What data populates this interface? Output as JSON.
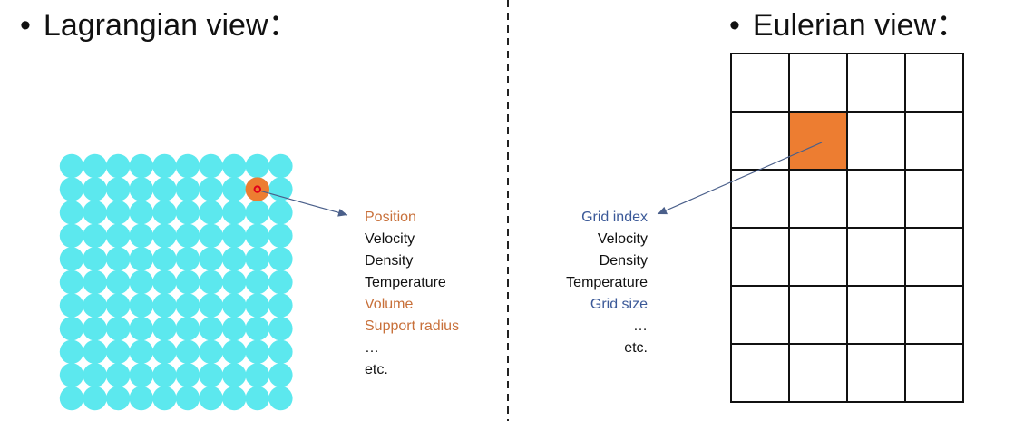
{
  "left": {
    "bullet": "•",
    "title": "Lagrangian view",
    "attributes": [
      {
        "text": "Position",
        "color": "#c8703a"
      },
      {
        "text": "Velocity",
        "color": "#111111"
      },
      {
        "text": "Density",
        "color": "#111111"
      },
      {
        "text": "Temperature",
        "color": "#111111"
      },
      {
        "text": "Volume",
        "color": "#c8703a"
      },
      {
        "text": "Support radius",
        "color": "#c8703a"
      },
      {
        "text": "…",
        "color": "#111111"
      },
      {
        "text": "etc.",
        "color": "#111111"
      }
    ],
    "particle_grid": {
      "rows": 11,
      "cols": 10,
      "highlight": {
        "row": 1,
        "col": 8
      }
    },
    "particle_color": "#5ce8ee",
    "highlight_color": "#ed7d31"
  },
  "right": {
    "bullet": "•",
    "title": "Eulerian view",
    "attributes": [
      {
        "text": "Grid index",
        "color": "#3b5998"
      },
      {
        "text": "Velocity",
        "color": "#111111"
      },
      {
        "text": "Density",
        "color": "#111111"
      },
      {
        "text": "Temperature",
        "color": "#111111"
      },
      {
        "text": "Grid size",
        "color": "#3b5998"
      },
      {
        "text": "…",
        "color": "#111111"
      },
      {
        "text": "etc.",
        "color": "#111111"
      }
    ],
    "grid": {
      "rows": 6,
      "cols": 4,
      "highlight": {
        "row": 1,
        "col": 1
      }
    },
    "cell_highlight_color": "#ed7d31"
  },
  "arrow_color": "#4a5f8a"
}
